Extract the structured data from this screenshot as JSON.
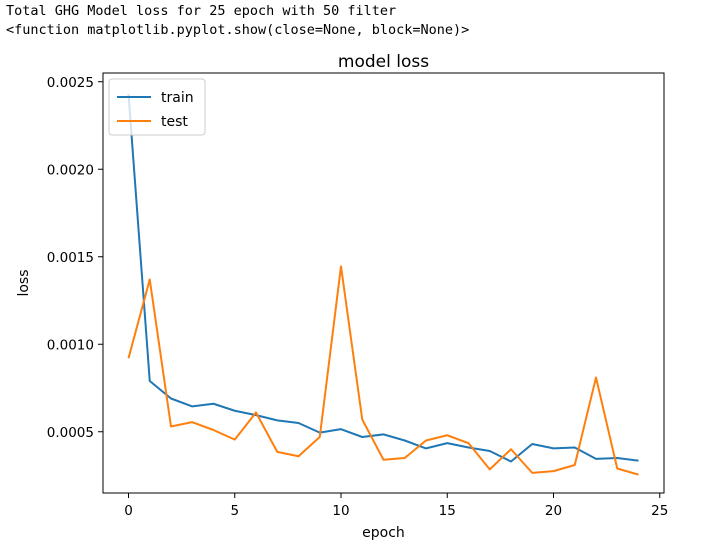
{
  "console": {
    "line1": "Total GHG Model loss for 25 epoch with 50 filter",
    "line2": "<function matplotlib.pyplot.show(close=None, block=None)>"
  },
  "chart_data": {
    "type": "line",
    "title": "model loss",
    "xlabel": "epoch",
    "ylabel": "loss",
    "xlim": [
      -1.2,
      25.2
    ],
    "ylim": [
      0.00015,
      0.00255
    ],
    "xticks": [
      0,
      5,
      10,
      15,
      20,
      25
    ],
    "xtick_labels": [
      "0",
      "5",
      "10",
      "15",
      "20",
      "25"
    ],
    "yticks": [
      0.0005,
      0.001,
      0.0015,
      0.002,
      0.0025
    ],
    "ytick_labels": [
      "0.0005",
      "0.0010",
      "0.0015",
      "0.0020",
      "0.0025"
    ],
    "grid": false,
    "legend": "top-left",
    "x": [
      0,
      1,
      2,
      3,
      4,
      5,
      6,
      7,
      8,
      9,
      10,
      11,
      12,
      13,
      14,
      15,
      16,
      17,
      18,
      19,
      20,
      21,
      22,
      23,
      24
    ],
    "series": [
      {
        "name": "train",
        "color": "#1f77b4",
        "values": [
          0.00243,
          0.00079,
          0.00069,
          0.000645,
          0.00066,
          0.00062,
          0.000595,
          0.000565,
          0.00055,
          0.000495,
          0.000515,
          0.00047,
          0.000485,
          0.00045,
          0.000405,
          0.000435,
          0.00041,
          0.00039,
          0.00033,
          0.00043,
          0.000405,
          0.00041,
          0.000345,
          0.00035,
          0.000335
        ]
      },
      {
        "name": "test",
        "color": "#ff7f0e",
        "values": [
          0.00092,
          0.00137,
          0.00053,
          0.000555,
          0.00051,
          0.000455,
          0.00061,
          0.000385,
          0.00036,
          0.00047,
          0.001445,
          0.00057,
          0.00034,
          0.00035,
          0.00045,
          0.00048,
          0.000435,
          0.000285,
          0.0004,
          0.000265,
          0.000275,
          0.00031,
          0.00081,
          0.00029,
          0.000255
        ]
      }
    ]
  }
}
